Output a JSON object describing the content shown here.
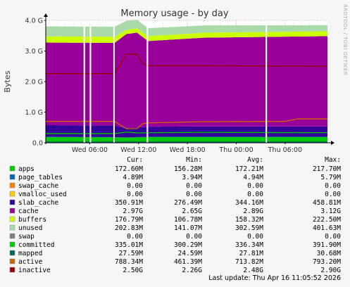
{
  "chart_data": {
    "type": "area",
    "title": "Memory usage - by day",
    "ylabel": "Bytes",
    "xlabel": "",
    "watermark": "RRDTOOL / TOBI OETIKER",
    "stacked": true,
    "x_ticks": [
      "Wed 06:00",
      "Wed 12:00",
      "Wed 18:00",
      "Thu 00:00",
      "Thu 06:00"
    ],
    "x_tick_hours": [
      6,
      12,
      18,
      24,
      30
    ],
    "x_range_hours": [
      0.6,
      35.2
    ],
    "y_ticks": [
      "0.0",
      "1.0 G",
      "2.0 G",
      "3.0 G",
      "4.0 G"
    ],
    "y_tick_values": [
      0,
      1,
      2,
      3,
      4
    ],
    "ylim": [
      0,
      4.0
    ],
    "y_unit": "G",
    "gaps_hours": [
      [
        5.25,
        5.4
      ],
      [
        6.0,
        6.15
      ],
      [
        8.9,
        9.05
      ],
      [
        13.0,
        13.15
      ],
      [
        27.6,
        27.75
      ]
    ],
    "grid": true,
    "legend_placement": "bottom",
    "stacked_series": [
      {
        "name": "apps",
        "color": "#00cc00",
        "x": [
          0.6,
          9.05,
          10.5,
          13.15,
          20,
          35.2
        ],
        "y": [
          0.19,
          0.18,
          0.17,
          0.19,
          0.19,
          0.19
        ]
      },
      {
        "name": "page_tables",
        "color": "#0066b3",
        "x": [
          0.6,
          35.2
        ],
        "y": [
          0.005,
          0.005
        ]
      },
      {
        "name": "swap_cache",
        "color": "#ff8000",
        "x": [
          0.6,
          35.2
        ],
        "y": [
          0,
          0
        ]
      },
      {
        "name": "vmalloc_used",
        "color": "#ffcc00",
        "x": [
          0.6,
          35.2
        ],
        "y": [
          0,
          0
        ]
      },
      {
        "name": "slab_cache",
        "color": "#330099",
        "x": [
          0.6,
          9.05,
          10.5,
          13.15,
          20,
          35.2
        ],
        "y": [
          0.38,
          0.38,
          0.3,
          0.33,
          0.34,
          0.34
        ]
      },
      {
        "name": "cache",
        "color": "#990099",
        "x": [
          0.6,
          9.05,
          10.5,
          11.8,
          13.15,
          20,
          35.2
        ],
        "y": [
          2.7,
          2.7,
          3.08,
          3.1,
          2.8,
          2.9,
          2.95
        ]
      },
      {
        "name": "buffers",
        "color": "#ccff00",
        "x": [
          0.6,
          9.05,
          10.5,
          13.15,
          20,
          35.2
        ],
        "y": [
          0.2,
          0.2,
          0.13,
          0.16,
          0.16,
          0.16
        ]
      },
      {
        "name": "unused",
        "color": "#aadaaa",
        "x": [
          0.6,
          9.05,
          10.5,
          13.15,
          20,
          35.2
        ],
        "y": [
          0.33,
          0.33,
          0.3,
          0.26,
          0.24,
          0.2
        ]
      }
    ],
    "line_series": [
      {
        "name": "committed",
        "color": "#00cc00",
        "x": [
          0.6,
          9.05,
          10.5,
          12,
          13.15,
          20,
          35.2
        ],
        "y": [
          0.3,
          0.3,
          0.35,
          0.32,
          0.33,
          0.34,
          0.33
        ]
      },
      {
        "name": "mapped",
        "color": "#006666",
        "x": [
          0.6,
          35.2
        ],
        "y": [
          0.028,
          0.028
        ]
      },
      {
        "name": "active",
        "color": "#cc6600",
        "x": [
          0.6,
          9.05,
          10.5,
          11.8,
          12.5,
          13.15,
          20,
          30,
          31.5,
          35.2
        ],
        "y": [
          0.7,
          0.7,
          0.46,
          0.46,
          0.62,
          0.65,
          0.69,
          0.7,
          0.78,
          0.78
        ]
      },
      {
        "name": "inactive",
        "color": "#990000",
        "x": [
          0.6,
          9.05,
          10.5,
          11.8,
          12.5,
          13.15,
          20,
          35.2
        ],
        "y": [
          2.26,
          2.26,
          2.9,
          2.9,
          2.6,
          2.52,
          2.52,
          2.5
        ]
      }
    ]
  },
  "legend": {
    "headers": {
      "cur": "Cur:",
      "min": "Min:",
      "avg": "Avg:",
      "max": "Max:"
    },
    "rows": [
      {
        "name": "apps",
        "color": "#00cc00",
        "cur": "172.60M",
        "min": "156.28M",
        "avg": "172.21M",
        "max": "217.70M"
      },
      {
        "name": "page_tables",
        "color": "#0066b3",
        "cur": "4.89M",
        "min": "3.94M",
        "avg": "4.94M",
        "max": "5.79M"
      },
      {
        "name": "swap_cache",
        "color": "#ff8000",
        "cur": "0.00",
        "min": "0.00",
        "avg": "0.00",
        "max": "0.00"
      },
      {
        "name": "vmalloc_used",
        "color": "#ffcc00",
        "cur": "0.00",
        "min": "0.00",
        "avg": "0.00",
        "max": "0.00"
      },
      {
        "name": "slab_cache",
        "color": "#330099",
        "cur": "350.91M",
        "min": "276.49M",
        "avg": "344.16M",
        "max": "458.81M"
      },
      {
        "name": "cache",
        "color": "#990099",
        "cur": "2.97G",
        "min": "2.65G",
        "avg": "2.89G",
        "max": "3.12G"
      },
      {
        "name": "buffers",
        "color": "#ccff00",
        "cur": "176.79M",
        "min": "106.78M",
        "avg": "158.32M",
        "max": "222.50M"
      },
      {
        "name": "unused",
        "color": "#aadaaa",
        "cur": "202.83M",
        "min": "141.07M",
        "avg": "302.59M",
        "max": "401.63M"
      },
      {
        "name": "swap",
        "color": "#808080",
        "cur": "0.00",
        "min": "0.00",
        "avg": "0.00",
        "max": "0.00"
      },
      {
        "name": "committed",
        "color": "#00cc00",
        "cur": "335.01M",
        "min": "300.29M",
        "avg": "336.34M",
        "max": "391.90M"
      },
      {
        "name": "mapped",
        "color": "#006666",
        "cur": "27.59M",
        "min": "24.59M",
        "avg": "27.81M",
        "max": "30.68M"
      },
      {
        "name": "active",
        "color": "#cc6600",
        "cur": "788.34M",
        "min": "461.39M",
        "avg": "713.82M",
        "max": "793.20M"
      },
      {
        "name": "inactive",
        "color": "#990000",
        "cur": "2.50G",
        "min": "2.26G",
        "avg": "2.48G",
        "max": "2.90G"
      }
    ]
  },
  "last_update": "Last update: Thu Apr 16 11:05:52 2026"
}
